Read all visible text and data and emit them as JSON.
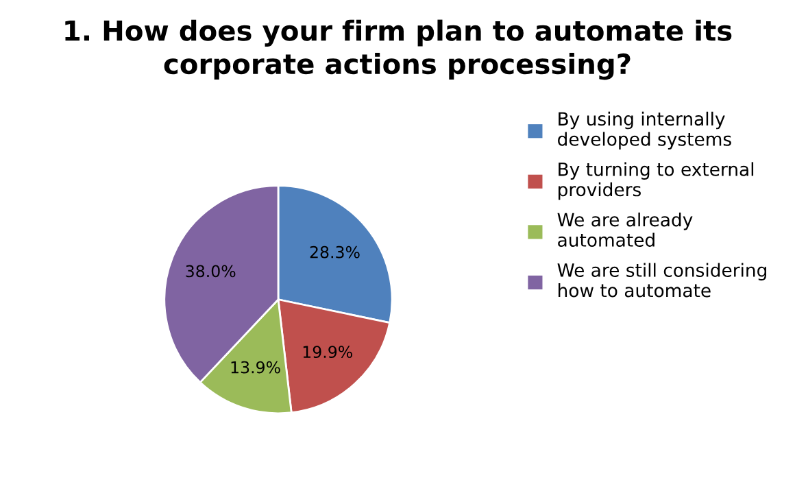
{
  "chart_data": {
    "type": "pie",
    "title": "1. How does your firm plan to automate its\ncorporate actions processing?",
    "categories": [
      "By using internally\ndeveloped systems",
      "By turning to external\nproviders",
      "We are already\nautomated",
      "We are still considering\nhow to automate"
    ],
    "values": [
      28.3,
      19.9,
      13.9,
      38.0
    ],
    "colors": [
      "#4f81bd",
      "#c0504d",
      "#9bbb59",
      "#8064a2"
    ],
    "value_labels": [
      "28.3%",
      "19.9%",
      "13.9%",
      "38.0%"
    ],
    "legend": "right"
  }
}
